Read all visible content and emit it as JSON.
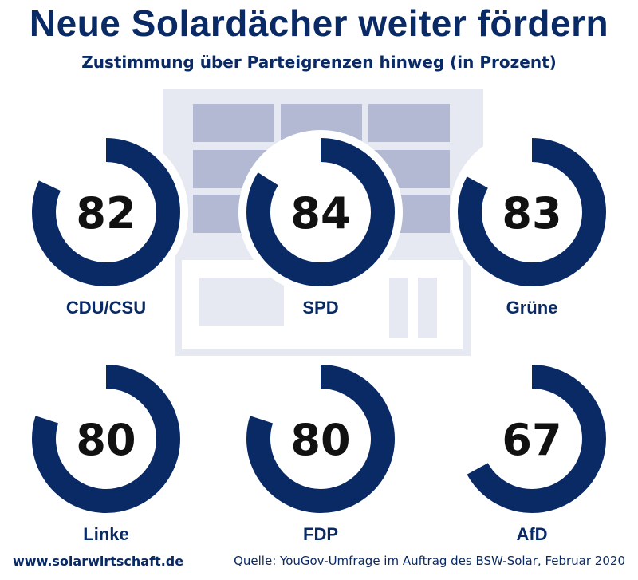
{
  "title": "Neue Solardächer weiter fördern",
  "subtitle": "Zustimmung über Parteigrenzen hinweg (in Prozent)",
  "footer": {
    "website": "www.solarwirtschaft.de",
    "source": "Quelle: YouGov-Umfrage im Auftrag des BSW-Solar, Februar 2020"
  },
  "colors": {
    "ring": "#0a2a66",
    "text": "#0a2a66",
    "value": "#111111",
    "building_fill": "#e6e8f2",
    "building_panel": "#b3b9d3",
    "background": "#ffffff"
  },
  "icons": [
    "solar-building-illustration"
  ],
  "chart_data": {
    "type": "radial-progress",
    "unit": "%",
    "max": 100,
    "categories": [
      "CDU/CSU",
      "SPD",
      "Grüne",
      "Linke",
      "FDP",
      "AfD"
    ],
    "values": [
      82,
      84,
      83,
      80,
      80,
      67
    ]
  }
}
